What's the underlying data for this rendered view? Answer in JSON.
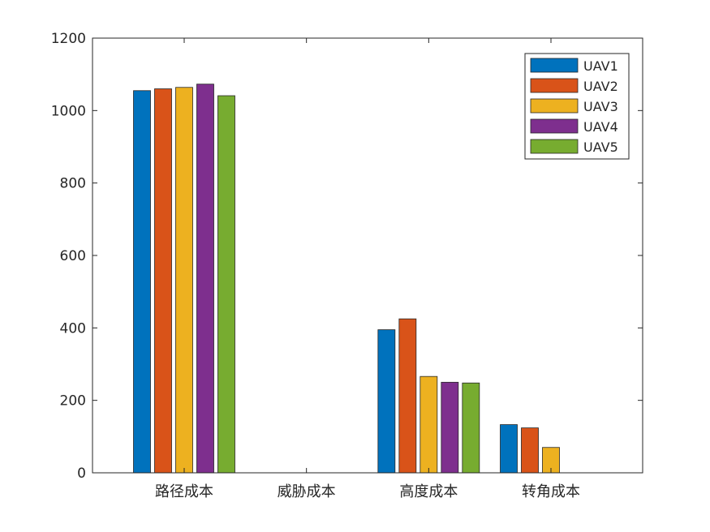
{
  "chart_data": {
    "type": "bar",
    "title": "",
    "xlabel": "",
    "ylabel": "",
    "categories": [
      "路径成本",
      "威胁成本",
      "高度成本",
      "转角成本"
    ],
    "ylim": [
      0,
      1200
    ],
    "yticks": [
      0,
      200,
      400,
      600,
      800,
      1000,
      1200
    ],
    "grid": false,
    "legend_position": "top-right",
    "series": [
      {
        "name": "UAV1",
        "color": "#0072BD",
        "values": [
          1055,
          0,
          395,
          133
        ]
      },
      {
        "name": "UAV2",
        "color": "#D95319",
        "values": [
          1060,
          0,
          425,
          124
        ]
      },
      {
        "name": "UAV3",
        "color": "#EDB120",
        "values": [
          1064,
          0,
          266,
          70
        ]
      },
      {
        "name": "UAV4",
        "color": "#7E2F8E",
        "values": [
          1073,
          0,
          250,
          0
        ]
      },
      {
        "name": "UAV5",
        "color": "#77AC30",
        "values": [
          1041,
          0,
          248,
          0
        ]
      }
    ]
  }
}
